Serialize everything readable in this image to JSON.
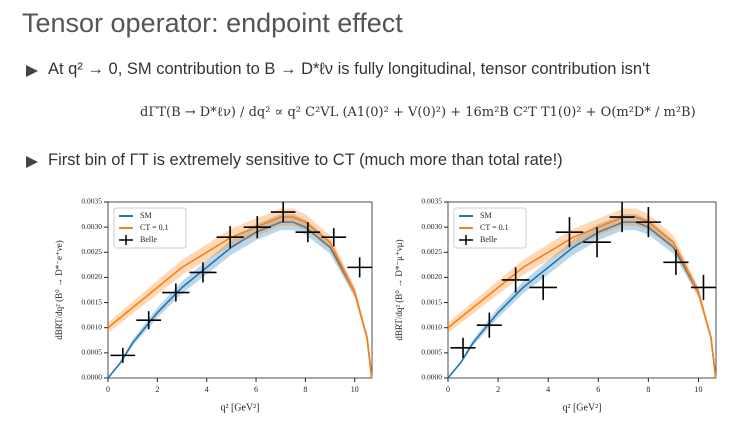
{
  "header": {
    "title": "Tensor operator: endpoint effect"
  },
  "bullets": [
    "At q² → 0, SM contribution to B → D*ℓν is fully longitudinal, tensor contribution isn't",
    "First bin of ΓT is extremely sensitive to CT (much more than total rate!)"
  ],
  "equation": "dΓT(B → D*ℓν) / dq²  ∝  q² C²VL (A1(0)² + V(0)²) + 16m²B C²T T1(0)² + O(m²D* / m²B)",
  "chart_data": [
    {
      "type": "line",
      "xlabel": "q² [GeV²]",
      "ylabel": "dBRT/dq² (B⁰ → D*⁻e⁺νe)",
      "legend": "upper left",
      "xlim": [
        0,
        10.7
      ],
      "ylim": [
        0,
        0.0035
      ],
      "xticks": [
        0,
        2,
        4,
        6,
        8,
        10
      ],
      "yticks": [
        {
          "value": 0,
          "label": "0.0000"
        },
        {
          "value": 0.0005,
          "label": "0.0005"
        },
        {
          "value": 0.001,
          "label": "0.0010"
        },
        {
          "value": 0.0015,
          "label": "0.0015"
        },
        {
          "value": 0.002,
          "label": "0.0020"
        },
        {
          "value": 0.0025,
          "label": "0.0025"
        },
        {
          "value": 0.003,
          "label": "0.0030"
        },
        {
          "value": 0.0035,
          "label": "0.0035"
        }
      ],
      "series": [
        {
          "name": "SM",
          "color": "#1f77b4",
          "x": [
            0,
            0.5,
            1,
            2,
            3,
            4,
            5,
            6,
            7,
            7.5,
            8,
            9,
            10,
            10.5,
            10.69
          ],
          "values": [
            0,
            0.0003,
            0.0007,
            0.0013,
            0.0018,
            0.0022,
            0.0026,
            0.0029,
            0.0031,
            0.0031,
            0.003,
            0.0026,
            0.0017,
            0.0008,
            0
          ],
          "errors": [
            0,
            3e-05,
            6e-05,
            0.0001,
            0.00012,
            0.00014,
            0.00015,
            0.00016,
            0.00016,
            0.00016,
            0.00015,
            0.00013,
            9e-05,
            5e-05,
            0
          ]
        },
        {
          "name": "CT = 0.1",
          "color": "#ff7f0e",
          "x": [
            0,
            0.5,
            1,
            2,
            3,
            4,
            5,
            6,
            7,
            7.5,
            8,
            9,
            10,
            10.5,
            10.69
          ],
          "values": [
            0.001,
            0.0012,
            0.0014,
            0.0018,
            0.0022,
            0.0025,
            0.0028,
            0.003,
            0.0032,
            0.0032,
            0.0031,
            0.0027,
            0.0017,
            0.0008,
            0
          ],
          "errors": [
            0.0001,
            0.00011,
            0.00012,
            0.00014,
            0.00015,
            0.00016,
            0.00017,
            0.00017,
            0.00017,
            0.00017,
            0.00016,
            0.00014,
            0.0001,
            5e-05,
            0
          ]
        },
        {
          "name": "Belle",
          "color": "#000000",
          "style": "errorbar",
          "x": [
            0.6,
            1.65,
            2.75,
            3.85,
            4.95,
            6.05,
            7.1,
            8.1,
            9.15,
            10.2
          ],
          "x_errors": [
            0.5,
            0.5,
            0.55,
            0.55,
            0.55,
            0.55,
            0.5,
            0.5,
            0.5,
            0.5
          ],
          "values": [
            0.00045,
            0.00115,
            0.0017,
            0.0021,
            0.0028,
            0.003,
            0.0033,
            0.0029,
            0.0028,
            0.0022
          ],
          "errors": [
            0.00015,
            0.00018,
            0.00018,
            0.0002,
            0.00022,
            0.00022,
            0.0002,
            0.0002,
            0.00018,
            0.0002
          ]
        }
      ]
    },
    {
      "type": "line",
      "xlabel": "q² [GeV²]",
      "ylabel": "dBRT/dq² (B⁰ → D*⁻μ⁺νμ)",
      "legend": "upper left",
      "xlim": [
        0,
        10.7
      ],
      "ylim": [
        0,
        0.0035
      ],
      "xticks": [
        0,
        2,
        4,
        6,
        8,
        10
      ],
      "yticks": [
        {
          "value": 0,
          "label": "0.0000"
        },
        {
          "value": 0.0005,
          "label": "0.0005"
        },
        {
          "value": 0.001,
          "label": "0.0010"
        },
        {
          "value": 0.0015,
          "label": "0.0015"
        },
        {
          "value": 0.002,
          "label": "0.0020"
        },
        {
          "value": 0.0025,
          "label": "0.0025"
        },
        {
          "value": 0.003,
          "label": "0.0030"
        },
        {
          "value": 0.0035,
          "label": "0.0035"
        }
      ],
      "series": [
        {
          "name": "SM",
          "color": "#1f77b4",
          "x": [
            0,
            0.5,
            1,
            2,
            3,
            4,
            5,
            6,
            7,
            7.5,
            8,
            9,
            10,
            10.5,
            10.69
          ],
          "values": [
            0,
            0.0003,
            0.0007,
            0.0013,
            0.0018,
            0.0022,
            0.0026,
            0.0029,
            0.0031,
            0.0031,
            0.003,
            0.0026,
            0.0017,
            0.0008,
            0
          ],
          "errors": [
            0,
            3e-05,
            6e-05,
            0.0001,
            0.00012,
            0.00014,
            0.00015,
            0.00016,
            0.00016,
            0.00016,
            0.00015,
            0.00013,
            9e-05,
            5e-05,
            0
          ]
        },
        {
          "name": "CT = 0.1",
          "color": "#ff7f0e",
          "x": [
            0,
            0.5,
            1,
            2,
            3,
            4,
            5,
            6,
            7,
            7.5,
            8,
            9,
            10,
            10.5,
            10.69
          ],
          "values": [
            0.001,
            0.0012,
            0.0014,
            0.0018,
            0.0022,
            0.0025,
            0.0028,
            0.003,
            0.0032,
            0.0032,
            0.0031,
            0.0027,
            0.0017,
            0.0008,
            0
          ],
          "errors": [
            0.0001,
            0.00011,
            0.00012,
            0.00014,
            0.00015,
            0.00016,
            0.00017,
            0.00017,
            0.00017,
            0.00017,
            0.00016,
            0.00014,
            0.0001,
            5e-05,
            0
          ]
        },
        {
          "name": "Belle",
          "color": "#000000",
          "style": "errorbar",
          "x": [
            0.6,
            1.65,
            2.7,
            3.8,
            4.85,
            5.95,
            6.95,
            8.0,
            9.1,
            10.2
          ],
          "x_errors": [
            0.5,
            0.5,
            0.55,
            0.55,
            0.55,
            0.55,
            0.5,
            0.5,
            0.5,
            0.5
          ],
          "values": [
            0.0006,
            0.00105,
            0.00195,
            0.0018,
            0.0029,
            0.0027,
            0.0032,
            0.0031,
            0.0023,
            0.0018
          ],
          "errors": [
            0.0002,
            0.00025,
            0.00025,
            0.00025,
            0.0003,
            0.0003,
            0.0003,
            0.0003,
            0.00025,
            0.00025
          ]
        }
      ]
    }
  ]
}
